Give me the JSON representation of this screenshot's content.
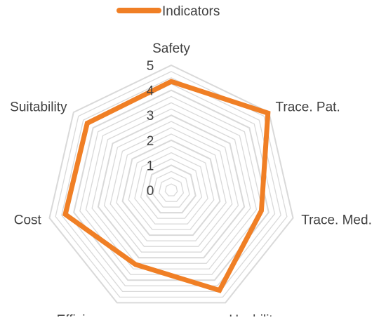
{
  "chart_data": {
    "type": "radar",
    "categories": [
      "Safety",
      "Trace. Pat.",
      "Trace. Med.",
      "Usability",
      "Efficiency",
      "Cost",
      "Suitability"
    ],
    "series": [
      {
        "name": "Indicators",
        "values": [
          4.35,
          4.95,
          3.7,
          4.45,
          3.3,
          4.35,
          4.3
        ],
        "color": "#F07F25"
      }
    ],
    "r_ticks": [
      "0",
      "1",
      "2",
      "3",
      "4",
      "5"
    ],
    "rlim": [
      0,
      5
    ],
    "minor_step": 0.25,
    "legend": "top-center",
    "grid": true,
    "grid_color": "#D9D9D9"
  }
}
